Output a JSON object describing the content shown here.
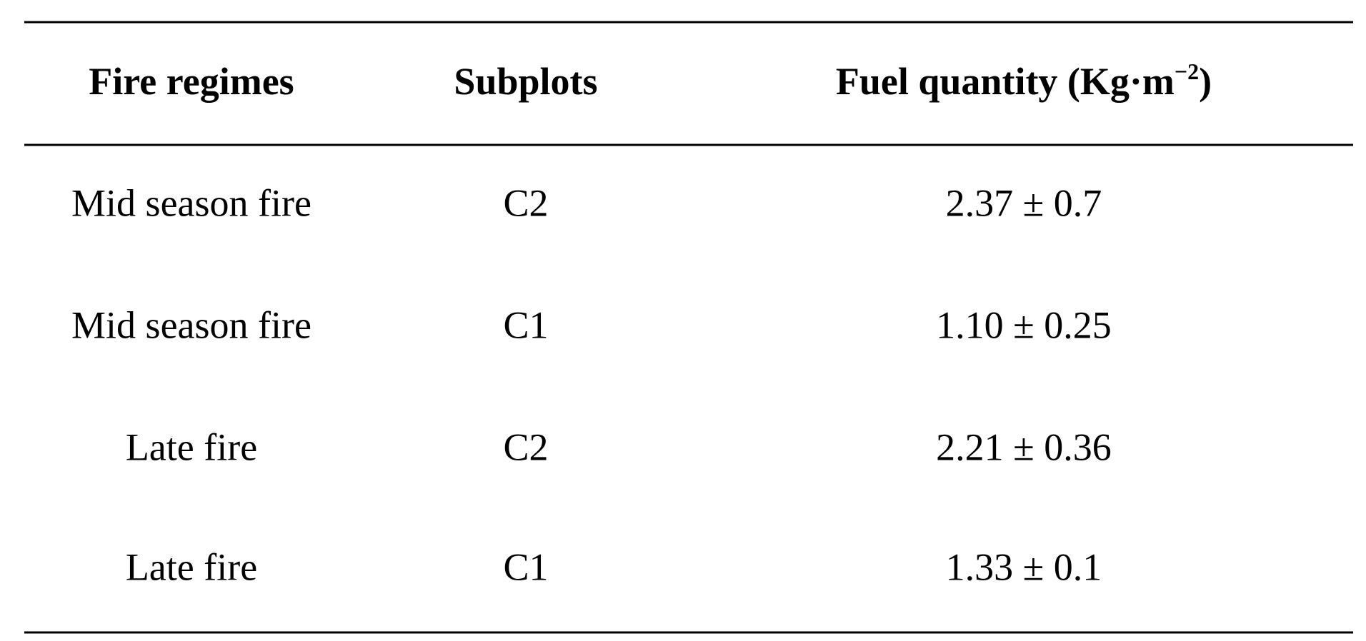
{
  "table": {
    "header": [
      {
        "text": "Fire regimes"
      },
      {
        "text": "Subplots"
      },
      {
        "text": "Fuel quantity (Kg·m",
        "superscript": "−2",
        "suffix": ")"
      }
    ],
    "rows": [
      [
        "Mid season fire",
        "C2",
        "2.37 ± 0.7"
      ],
      [
        "Mid season fire",
        "C1",
        "1.10 ± 0.25"
      ],
      [
        "Late fire",
        "C2",
        "2.21 ± 0.36"
      ],
      [
        "Late fire",
        "C1",
        "1.33 ± 0.1"
      ]
    ]
  }
}
